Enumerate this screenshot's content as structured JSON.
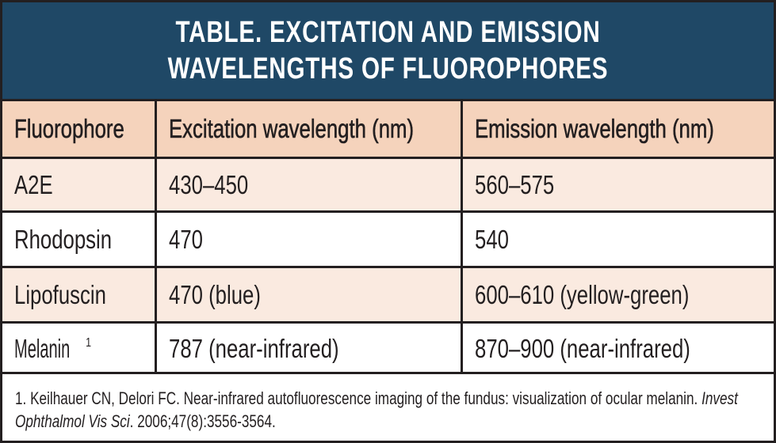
{
  "title": "TABLE. EXCITATION AND EMISSION WAVELENGTHS OF FLUOROPHORES",
  "colors": {
    "title_bg": "#1f4866",
    "header_bg": "#f5d3bc",
    "alt_row_bg": "#faeae0"
  },
  "headers": [
    "Fluorophore",
    "Excitation wavelength (nm)",
    "Emission wavelength (nm)"
  ],
  "rows": [
    {
      "fluorophore": "A2E",
      "excitation": "430–450",
      "emission": "560–575"
    },
    {
      "fluorophore": "Rhodopsin",
      "excitation": "470",
      "emission": "540"
    },
    {
      "fluorophore": "Lipofuscin",
      "excitation": "470 (blue)",
      "emission": "600–610 (yellow-green)"
    },
    {
      "fluorophore": "Melanin",
      "footnote_mark": "1",
      "excitation": "787 (near-infrared)",
      "emission": "870–900 (near-infrared)"
    }
  ],
  "footnote": {
    "text": "1. Keilhauer CN, Delori FC. Near-infrared autofluorescence imaging of the fundus: visualization of ocular melanin. ",
    "journal": "Invest Ophthalmol Vis Sci",
    "citation": ". 2006;47(8):3556-3564."
  }
}
